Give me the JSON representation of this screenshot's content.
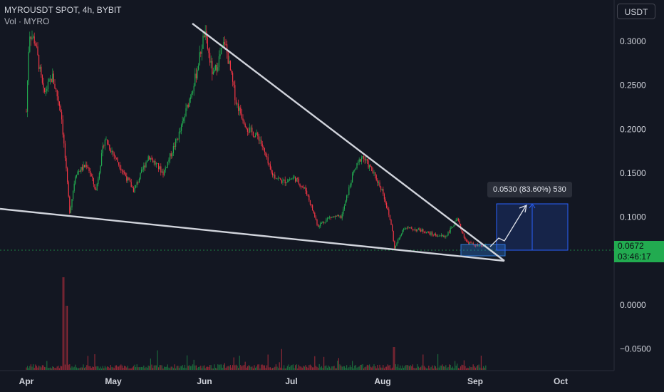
{
  "header": {
    "symbol_line": "MYROUSDT SPOT, 4h, BYBIT",
    "volume_line": "Vol · MYRO"
  },
  "currency_button": "USDT",
  "last_price": {
    "value": "0.0672",
    "countdown": "03:46:17"
  },
  "measure_label": "0.0530 (83.60%) 530",
  "colors": {
    "background": "#131722",
    "up": "#22ab50",
    "down": "#f23645",
    "trendline": "#d1d4dc",
    "measure_fill": "#1a2a4a",
    "measure_stroke": "#2962ff",
    "consolidation_box": "#2f7bd8"
  },
  "chart_data": {
    "type": "candlestick",
    "y_ticks": [
      "0.3000",
      "0.2500",
      "0.2000",
      "0.1500",
      "0.1000",
      "0.0000",
      "−0.0500"
    ],
    "y_values": [
      0.3,
      0.25,
      0.2,
      0.15,
      0.1,
      0.0,
      -0.05
    ],
    "x_ticks": [
      "Apr",
      "May",
      "Jun",
      "Jul",
      "Aug",
      "Sep",
      "Oct"
    ],
    "ylim": [
      -0.05,
      0.3
    ],
    "price_path": [
      {
        "x": "Apr 1",
        "y": 0.22
      },
      {
        "x": "Apr 2",
        "y": 0.31
      },
      {
        "x": "Apr 4",
        "y": 0.3
      },
      {
        "x": "Apr 7",
        "y": 0.24
      },
      {
        "x": "Apr 10",
        "y": 0.26
      },
      {
        "x": "Apr 13",
        "y": 0.22
      },
      {
        "x": "Apr 16",
        "y": 0.105
      },
      {
        "x": "Apr 18",
        "y": 0.15
      },
      {
        "x": "Apr 22",
        "y": 0.16
      },
      {
        "x": "Apr 25",
        "y": 0.13
      },
      {
        "x": "Apr 28",
        "y": 0.19
      },
      {
        "x": "May 3",
        "y": 0.16
      },
      {
        "x": "May 8",
        "y": 0.13
      },
      {
        "x": "May 13",
        "y": 0.17
      },
      {
        "x": "May 18",
        "y": 0.15
      },
      {
        "x": "May 24",
        "y": 0.2
      },
      {
        "x": "May 29",
        "y": 0.26
      },
      {
        "x": "Jun 1",
        "y": 0.31
      },
      {
        "x": "Jun 4",
        "y": 0.26
      },
      {
        "x": "Jun 8",
        "y": 0.3
      },
      {
        "x": "Jun 12",
        "y": 0.23
      },
      {
        "x": "Jun 16",
        "y": 0.2
      },
      {
        "x": "Jun 20",
        "y": 0.19
      },
      {
        "x": "Jun 24",
        "y": 0.15
      },
      {
        "x": "Jun 28",
        "y": 0.14
      },
      {
        "x": "Jul 2",
        "y": 0.145
      },
      {
        "x": "Jul 6",
        "y": 0.13
      },
      {
        "x": "Jul 10",
        "y": 0.09
      },
      {
        "x": "Jul 14",
        "y": 0.1
      },
      {
        "x": "Jul 18",
        "y": 0.1
      },
      {
        "x": "Jul 22",
        "y": 0.15
      },
      {
        "x": "Jul 25",
        "y": 0.17
      },
      {
        "x": "Jul 28",
        "y": 0.155
      },
      {
        "x": "Aug 1",
        "y": 0.13
      },
      {
        "x": "Aug 4",
        "y": 0.09
      },
      {
        "x": "Aug 5",
        "y": 0.064
      },
      {
        "x": "Aug 8",
        "y": 0.088
      },
      {
        "x": "Aug 14",
        "y": 0.085
      },
      {
        "x": "Aug 18",
        "y": 0.08
      },
      {
        "x": "Aug 22",
        "y": 0.078
      },
      {
        "x": "Aug 26",
        "y": 0.097
      },
      {
        "x": "Aug 29",
        "y": 0.072
      },
      {
        "x": "Sep 2",
        "y": 0.067
      },
      {
        "x": "Sep 5",
        "y": 0.0672
      }
    ],
    "annotations": {
      "upper_trendline": [
        {
          "x": "Jun 1",
          "y": 0.314
        },
        {
          "x": "Sep 9",
          "y": 0.056
        }
      ],
      "lower_trendline": [
        {
          "x": "Mar 20",
          "y": 0.11
        },
        {
          "x": "Sep 9",
          "y": 0.056
        }
      ],
      "measure": {
        "from": 0.064,
        "to": 0.117,
        "change": 0.053,
        "percent": 83.6,
        "bars": 530
      },
      "consolidation_box": {
        "x_from": "Aug 30",
        "x_to": "Sep 9",
        "y_from": 0.06,
        "y_to": 0.074
      }
    }
  }
}
